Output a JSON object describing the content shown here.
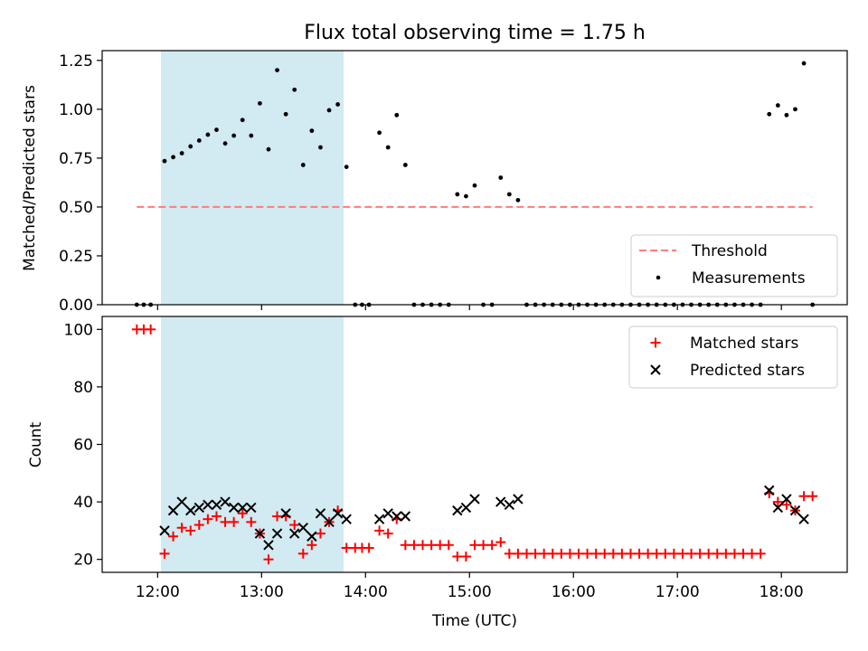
{
  "chart_data": [
    {
      "type": "scatter",
      "title": "Flux total observing time = 1.75 h",
      "xlabel": "",
      "ylabel": "Matched/Predicted stars",
      "x_unit": "time (UTC)",
      "xlim": [
        "11:28",
        "18:38"
      ],
      "ylim": [
        0,
        1.3
      ],
      "yticks": [
        0,
        0.25,
        0.5,
        0.75,
        1.0,
        1.25
      ],
      "ytick_labels": [
        "0.00",
        "0.25",
        "0.50",
        "0.75",
        "1.00",
        "1.25"
      ],
      "shaded_region": {
        "start": "12:04",
        "end": "13:49",
        "color": "#add8e6"
      },
      "legend_position": "lower right",
      "threshold": {
        "name": "Threshold",
        "value": 0.5,
        "x_start": "11:48",
        "x_end": "18:18",
        "color": "#ff7b7b",
        "style": "dashed"
      },
      "series": [
        {
          "name": "Measurements",
          "color": "#000000",
          "marker": "dot",
          "points": [
            [
              "11:48",
              0
            ],
            [
              "11:52",
              0
            ],
            [
              "11:56",
              0
            ],
            [
              "12:04",
              0.735
            ],
            [
              "12:09",
              0.755
            ],
            [
              "12:14",
              0.775
            ],
            [
              "12:19",
              0.81
            ],
            [
              "12:24",
              0.84
            ],
            [
              "12:29",
              0.87
            ],
            [
              "12:34",
              0.895
            ],
            [
              "12:39",
              0.825
            ],
            [
              "12:44",
              0.865
            ],
            [
              "12:49",
              0.945
            ],
            [
              "12:54",
              0.865
            ],
            [
              "12:59",
              1.03
            ],
            [
              "13:04",
              0.795
            ],
            [
              "13:09",
              1.2
            ],
            [
              "13:14",
              0.975
            ],
            [
              "13:19",
              1.1
            ],
            [
              "13:24",
              0.715
            ],
            [
              "13:29",
              0.89
            ],
            [
              "13:34",
              0.805
            ],
            [
              "13:39",
              0.995
            ],
            [
              "13:44",
              1.025
            ],
            [
              "13:49",
              0.705
            ],
            [
              "13:54",
              0
            ],
            [
              "13:58",
              0
            ],
            [
              "14:02",
              0
            ],
            [
              "14:08",
              0.88
            ],
            [
              "14:13",
              0.805
            ],
            [
              "14:18",
              0.97
            ],
            [
              "14:23",
              0.715
            ],
            [
              "14:28",
              0
            ],
            [
              "14:33",
              0
            ],
            [
              "14:38",
              0
            ],
            [
              "14:43",
              0
            ],
            [
              "14:48",
              0
            ],
            [
              "14:53",
              0.565
            ],
            [
              "14:58",
              0.555
            ],
            [
              "15:03",
              0.61
            ],
            [
              "15:08",
              0
            ],
            [
              "15:13",
              0
            ],
            [
              "15:18",
              0.65
            ],
            [
              "15:23",
              0.565
            ],
            [
              "15:28",
              0.535
            ],
            [
              "15:33",
              0
            ],
            [
              "15:38",
              0
            ],
            [
              "15:43",
              0
            ],
            [
              "15:48",
              0
            ],
            [
              "15:53",
              0
            ],
            [
              "15:58",
              0
            ],
            [
              "16:03",
              0
            ],
            [
              "16:08",
              0
            ],
            [
              "16:13",
              0
            ],
            [
              "16:18",
              0
            ],
            [
              "16:23",
              0
            ],
            [
              "16:28",
              0
            ],
            [
              "16:33",
              0
            ],
            [
              "16:38",
              0
            ],
            [
              "16:43",
              0
            ],
            [
              "16:48",
              0
            ],
            [
              "16:53",
              0
            ],
            [
              "16:58",
              0
            ],
            [
              "17:03",
              0
            ],
            [
              "17:08",
              0
            ],
            [
              "17:13",
              0
            ],
            [
              "17:18",
              0
            ],
            [
              "17:23",
              0
            ],
            [
              "17:28",
              0
            ],
            [
              "17:33",
              0
            ],
            [
              "17:38",
              0
            ],
            [
              "17:43",
              0
            ],
            [
              "17:48",
              0
            ],
            [
              "17:53",
              0.975
            ],
            [
              "17:58",
              1.02
            ],
            [
              "18:03",
              0.97
            ],
            [
              "18:08",
              1.0
            ],
            [
              "18:13",
              1.235
            ],
            [
              "18:18",
              0
            ]
          ]
        }
      ]
    },
    {
      "type": "scatter",
      "title": "",
      "xlabel": "Time (UTC)",
      "ylabel": "Count",
      "x_unit": "time (UTC)",
      "xlim": [
        "11:28",
        "18:38"
      ],
      "ylim": [
        15.5,
        104.5
      ],
      "yticks": [
        20,
        40,
        60,
        80,
        100
      ],
      "ytick_labels": [
        "20",
        "40",
        "60",
        "80",
        "100"
      ],
      "xticks": [
        "12:00",
        "13:00",
        "14:00",
        "15:00",
        "16:00",
        "17:00",
        "18:00"
      ],
      "xtick_labels": [
        "12:00",
        "13:00",
        "14:00",
        "15:00",
        "16:00",
        "17:00",
        "18:00"
      ],
      "shaded_region": {
        "start": "12:04",
        "end": "13:49",
        "color": "#add8e6"
      },
      "legend_position": "upper right",
      "series": [
        {
          "name": "Matched stars",
          "color": "#ff0000",
          "marker": "plus",
          "points": [
            [
              "11:48",
              100
            ],
            [
              "11:52",
              100
            ],
            [
              "11:56",
              100
            ],
            [
              "12:04",
              22
            ],
            [
              "12:09",
              28
            ],
            [
              "12:14",
              31
            ],
            [
              "12:19",
              30
            ],
            [
              "12:24",
              32
            ],
            [
              "12:29",
              34
            ],
            [
              "12:34",
              35
            ],
            [
              "12:39",
              33
            ],
            [
              "12:44",
              33
            ],
            [
              "12:49",
              36
            ],
            [
              "12:54",
              33
            ],
            [
              "12:59",
              29
            ],
            [
              "13:04",
              20
            ],
            [
              "13:09",
              35
            ],
            [
              "13:14",
              35
            ],
            [
              "13:19",
              32
            ],
            [
              "13:24",
              22
            ],
            [
              "13:29",
              25
            ],
            [
              "13:34",
              29
            ],
            [
              "13:39",
              33
            ],
            [
              "13:44",
              37
            ],
            [
              "13:49",
              24
            ],
            [
              "13:54",
              24
            ],
            [
              "13:58",
              24
            ],
            [
              "14:02",
              24
            ],
            [
              "14:08",
              30
            ],
            [
              "14:13",
              29
            ],
            [
              "14:18",
              34
            ],
            [
              "14:23",
              25
            ],
            [
              "14:28",
              25
            ],
            [
              "14:33",
              25
            ],
            [
              "14:38",
              25
            ],
            [
              "14:43",
              25
            ],
            [
              "14:48",
              25
            ],
            [
              "14:53",
              21
            ],
            [
              "14:58",
              21
            ],
            [
              "15:03",
              25
            ],
            [
              "15:08",
              25
            ],
            [
              "15:13",
              25
            ],
            [
              "15:18",
              26
            ],
            [
              "15:23",
              22
            ],
            [
              "15:28",
              22
            ],
            [
              "15:33",
              22
            ],
            [
              "15:38",
              22
            ],
            [
              "15:43",
              22
            ],
            [
              "15:48",
              22
            ],
            [
              "15:53",
              22
            ],
            [
              "15:58",
              22
            ],
            [
              "16:03",
              22
            ],
            [
              "16:08",
              22
            ],
            [
              "16:13",
              22
            ],
            [
              "16:18",
              22
            ],
            [
              "16:23",
              22
            ],
            [
              "16:28",
              22
            ],
            [
              "16:33",
              22
            ],
            [
              "16:38",
              22
            ],
            [
              "16:43",
              22
            ],
            [
              "16:48",
              22
            ],
            [
              "16:53",
              22
            ],
            [
              "16:58",
              22
            ],
            [
              "17:03",
              22
            ],
            [
              "17:08",
              22
            ],
            [
              "17:13",
              22
            ],
            [
              "17:18",
              22
            ],
            [
              "17:23",
              22
            ],
            [
              "17:28",
              22
            ],
            [
              "17:33",
              22
            ],
            [
              "17:38",
              22
            ],
            [
              "17:43",
              22
            ],
            [
              "17:48",
              22
            ],
            [
              "17:53",
              43
            ],
            [
              "17:58",
              40
            ],
            [
              "18:03",
              39
            ],
            [
              "18:08",
              37
            ],
            [
              "18:13",
              42
            ],
            [
              "18:18",
              42
            ]
          ]
        },
        {
          "name": "Predicted stars",
          "color": "#000000",
          "marker": "x",
          "points": [
            [
              "12:04",
              30
            ],
            [
              "12:09",
              37
            ],
            [
              "12:14",
              40
            ],
            [
              "12:19",
              37
            ],
            [
              "12:24",
              38
            ],
            [
              "12:29",
              39
            ],
            [
              "12:34",
              39
            ],
            [
              "12:39",
              40
            ],
            [
              "12:44",
              38
            ],
            [
              "12:49",
              38
            ],
            [
              "12:54",
              38
            ],
            [
              "12:59",
              29
            ],
            [
              "13:04",
              25
            ],
            [
              "13:09",
              29
            ],
            [
              "13:14",
              36
            ],
            [
              "13:19",
              29
            ],
            [
              "13:24",
              31
            ],
            [
              "13:29",
              28
            ],
            [
              "13:34",
              36
            ],
            [
              "13:39",
              33
            ],
            [
              "13:44",
              36
            ],
            [
              "13:49",
              34
            ],
            [
              "14:08",
              34
            ],
            [
              "14:13",
              36
            ],
            [
              "14:18",
              35
            ],
            [
              "14:23",
              35
            ],
            [
              "14:53",
              37
            ],
            [
              "14:58",
              38
            ],
            [
              "15:03",
              41
            ],
            [
              "15:18",
              40
            ],
            [
              "15:23",
              39
            ],
            [
              "15:28",
              41
            ],
            [
              "17:53",
              44
            ],
            [
              "17:58",
              38
            ],
            [
              "18:03",
              41
            ],
            [
              "18:08",
              37
            ],
            [
              "18:13",
              34
            ]
          ]
        }
      ]
    }
  ]
}
